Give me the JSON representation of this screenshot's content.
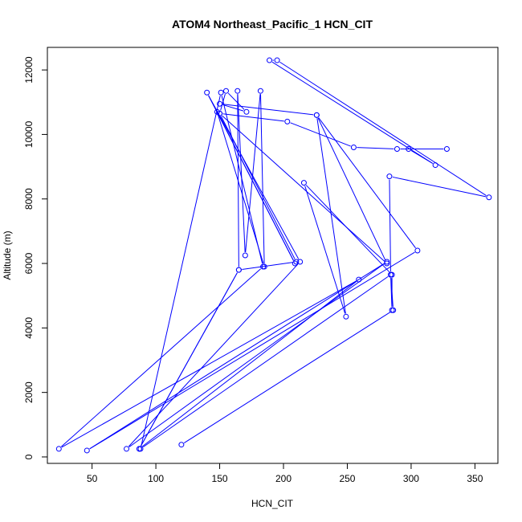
{
  "chart_data": {
    "type": "line",
    "title": "ATOM4 Northeast_Pacific_1 HCN_CIT",
    "xlabel": "HCN_CIT",
    "ylabel": "Altitude (m)",
    "xlim": [
      15,
      368
    ],
    "ylim": [
      -200,
      12700
    ],
    "xticks": [
      50,
      100,
      150,
      200,
      250,
      300,
      350
    ],
    "yticks": [
      0,
      2000,
      4000,
      6000,
      8000,
      10000,
      12000
    ],
    "series_color": "#0000ff",
    "grid": false,
    "legend": "none",
    "markers": "open-circle",
    "points": [
      [
        120,
        380
      ],
      [
        286,
        4550
      ],
      [
        284,
        5650
      ],
      [
        88,
        250
      ],
      [
        151,
        11300
      ],
      [
        184,
        5900
      ],
      [
        24,
        250
      ],
      [
        259,
        5500
      ],
      [
        87,
        250
      ],
      [
        165,
        5800
      ],
      [
        164,
        11350
      ],
      [
        170,
        6250
      ],
      [
        182,
        11350
      ],
      [
        185,
        5900
      ],
      [
        148,
        10700
      ],
      [
        209,
        6000
      ],
      [
        140,
        11300
      ],
      [
        213,
        6050
      ],
      [
        77,
        250
      ],
      [
        281,
        6050
      ],
      [
        46,
        200
      ],
      [
        305,
        6400
      ],
      [
        226,
        10600
      ],
      [
        281,
        6000
      ],
      [
        150,
        10650
      ],
      [
        203,
        10400
      ],
      [
        255,
        9600
      ],
      [
        289,
        9550
      ],
      [
        328,
        9550
      ],
      [
        298,
        9550
      ],
      [
        319,
        9050
      ],
      [
        189,
        12300
      ],
      [
        195,
        12300
      ],
      [
        361,
        8050
      ],
      [
        283,
        8700
      ],
      [
        284,
        5650
      ],
      [
        285,
        4550
      ],
      [
        285,
        5650
      ],
      [
        216,
        8500
      ],
      [
        249,
        4350
      ],
      [
        226,
        10600
      ],
      [
        150,
        10950
      ],
      [
        171,
        10700
      ],
      [
        155,
        11350
      ],
      [
        150,
        10650
      ],
      [
        210,
        6050
      ],
      [
        165,
        5800
      ],
      [
        87,
        250
      ]
    ]
  }
}
